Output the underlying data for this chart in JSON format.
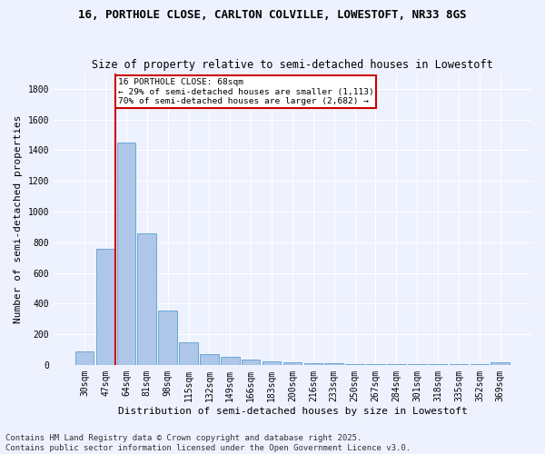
{
  "title1": "16, PORTHOLE CLOSE, CARLTON COLVILLE, LOWESTOFT, NR33 8GS",
  "title2": "Size of property relative to semi-detached houses in Lowestoft",
  "xlabel": "Distribution of semi-detached houses by size in Lowestoft",
  "ylabel": "Number of semi-detached properties",
  "categories": [
    "30sqm",
    "47sqm",
    "64sqm",
    "81sqm",
    "98sqm",
    "115sqm",
    "132sqm",
    "149sqm",
    "166sqm",
    "183sqm",
    "200sqm",
    "216sqm",
    "233sqm",
    "250sqm",
    "267sqm",
    "284sqm",
    "301sqm",
    "318sqm",
    "335sqm",
    "352sqm",
    "369sqm"
  ],
  "values": [
    90,
    760,
    1450,
    860,
    355,
    150,
    70,
    50,
    35,
    22,
    18,
    12,
    8,
    5,
    5,
    4,
    4,
    3,
    3,
    3,
    15
  ],
  "bar_color": "#aec6e8",
  "bar_edge_color": "#5a9fd4",
  "property_line_x": 1.5,
  "annotation_line1": "16 PORTHOLE CLOSE: 68sqm",
  "annotation_line2": "← 29% of semi-detached houses are smaller (1,113)",
  "annotation_line3": "70% of semi-detached houses are larger (2,682) →",
  "annotation_box_color": "#ffffff",
  "annotation_box_edge": "#cc0000",
  "property_line_color": "#cc0000",
  "ylim": [
    0,
    1900
  ],
  "yticks": [
    0,
    200,
    400,
    600,
    800,
    1000,
    1200,
    1400,
    1600,
    1800
  ],
  "footnote": "Contains HM Land Registry data © Crown copyright and database right 2025.\nContains public sector information licensed under the Open Government Licence v3.0.",
  "background_color": "#eef2ff",
  "grid_color": "#ffffff",
  "title_fontsize": 9,
  "subtitle_fontsize": 8.5,
  "axis_label_fontsize": 8,
  "tick_fontsize": 7,
  "footnote_fontsize": 6.5
}
